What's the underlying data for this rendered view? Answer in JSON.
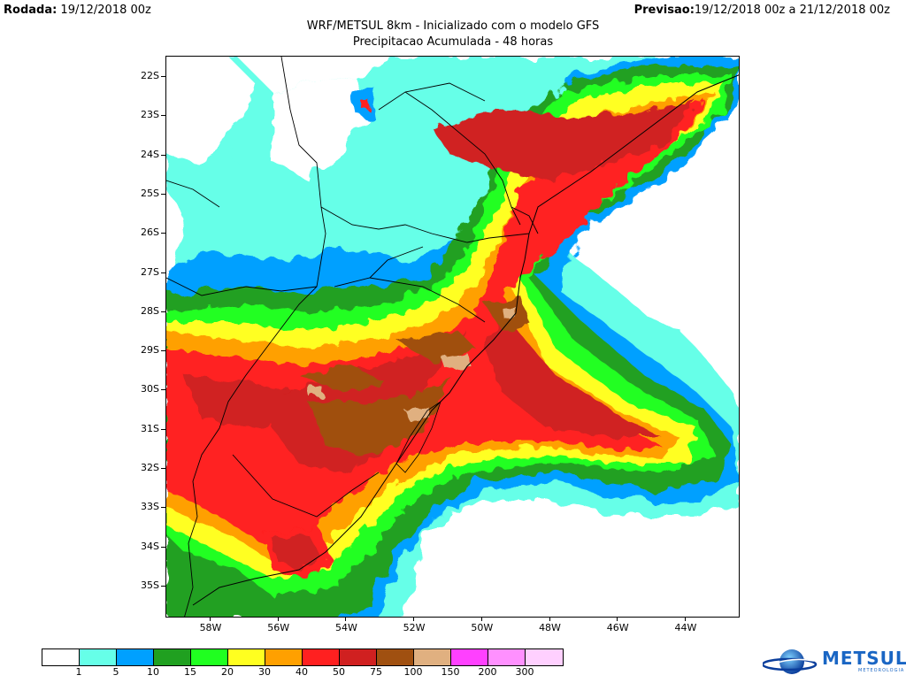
{
  "header": {
    "run_label": "Rodada:",
    "run_value": " 19/12/2018 00z",
    "forecast_label": "Previsao:",
    "forecast_value": "19/12/2018 00z a 21/12/2018 00z",
    "title": "WRF/METSUL 8km - Inicializado com o modelo GFS",
    "subtitle": "Precipitacao Acumulada - 48 horas"
  },
  "map": {
    "lat_labels": [
      "22S",
      "23S",
      "24S",
      "25S",
      "26S",
      "27S",
      "28S",
      "29S",
      "30S",
      "31S",
      "32S",
      "33S",
      "34S",
      "35S"
    ],
    "lon_labels": [
      "58W",
      "56W",
      "54W",
      "52W",
      "50W",
      "48W",
      "46W",
      "44W"
    ],
    "ocean_color": "#ffffff",
    "border_color": "#000000"
  },
  "legend": {
    "colors": [
      "#ffffff",
      "#66ffe8",
      "#00a0ff",
      "#20a020",
      "#20ff20",
      "#ffff20",
      "#ffa000",
      "#ff2020",
      "#d02020",
      "#a05010",
      "#e0b080",
      "#ff40ff",
      "#ff90ff",
      "#ffd0ff"
    ],
    "labels": [
      "1",
      "5",
      "10",
      "15",
      "20",
      "30",
      "40",
      "50",
      "75",
      "100",
      "150",
      "200",
      "300"
    ]
  },
  "logo": {
    "name": "METSUL",
    "sub": "METEOROLOGIA"
  }
}
